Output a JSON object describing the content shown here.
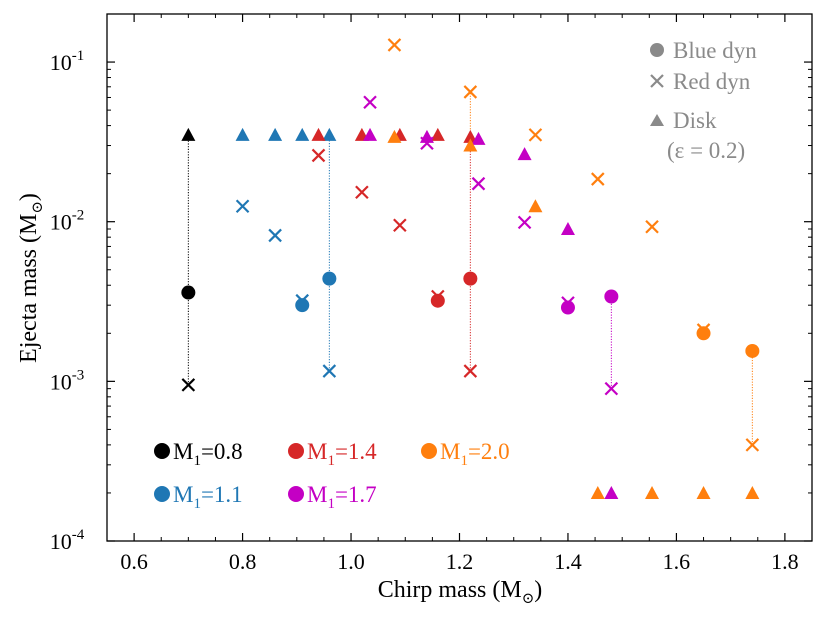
{
  "chart_data": {
    "type": "scatter",
    "title": "",
    "xlabel_main": "Chirp mass (M",
    "xlabel_sub": "⊙",
    "xlabel_end": ")",
    "ylabel_main": "Ejecta mass (M",
    "ylabel_sub": "⊙",
    "ylabel_end": ")",
    "xlim": [
      0.55,
      1.85
    ],
    "ylim": [
      0.0001,
      0.2
    ],
    "yscale": "log",
    "xticks": [
      {
        "value": 0.6,
        "label": "0.6"
      },
      {
        "value": 0.8,
        "label": "0.8"
      },
      {
        "value": 1.0,
        "label": "1.0"
      },
      {
        "value": 1.2,
        "label": "1.2"
      },
      {
        "value": 1.4,
        "label": "1.4"
      },
      {
        "value": 1.6,
        "label": "1.6"
      },
      {
        "value": 1.8,
        "label": "1.8"
      }
    ],
    "yticks": [
      {
        "value": 0.0001,
        "base": "10",
        "exp": "-4"
      },
      {
        "value": 0.001,
        "base": "10",
        "exp": "-3"
      },
      {
        "value": 0.01,
        "base": "10",
        "exp": "-2"
      },
      {
        "value": 0.1,
        "base": "10",
        "exp": "-1"
      }
    ],
    "marker_legend": [
      {
        "marker": "circle",
        "label": "Blue dyn"
      },
      {
        "marker": "cross",
        "label": "Red dyn"
      },
      {
        "marker": "triangle",
        "label": "Disk"
      },
      {
        "marker": "none",
        "label": "(ε = 0.2)"
      }
    ],
    "legend_marker_color": "#8a8a8a",
    "series": [
      {
        "name": "M1=0.8",
        "label_main": "M",
        "label_sub": "1",
        "label_end": "=0.8",
        "color": "#000000",
        "blue_dyn": [
          {
            "x": 0.7,
            "y": 0.0036
          }
        ],
        "red_dyn": [
          {
            "x": 0.7,
            "y": 0.00095
          }
        ],
        "disk": [
          {
            "x": 0.7,
            "y": 0.035
          }
        ],
        "connectors": [
          {
            "x": 0.7,
            "y0": 0.00095,
            "y1": 0.035
          }
        ]
      },
      {
        "name": "M1=1.1",
        "label_main": "M",
        "label_sub": "1",
        "label_end": "=1.1",
        "color": "#1f77b4",
        "blue_dyn": [
          {
            "x": 0.91,
            "y": 0.003
          },
          {
            "x": 0.96,
            "y": 0.0044
          }
        ],
        "red_dyn": [
          {
            "x": 0.8,
            "y": 0.0125
          },
          {
            "x": 0.86,
            "y": 0.0082
          },
          {
            "x": 0.91,
            "y": 0.0032
          },
          {
            "x": 0.96,
            "y": 0.00116
          }
        ],
        "disk": [
          {
            "x": 0.8,
            "y": 0.035
          },
          {
            "x": 0.86,
            "y": 0.035
          },
          {
            "x": 0.91,
            "y": 0.035
          },
          {
            "x": 0.96,
            "y": 0.035
          }
        ],
        "connectors": [
          {
            "x": 0.96,
            "y0": 0.00116,
            "y1": 0.035
          }
        ]
      },
      {
        "name": "M1=1.4",
        "label_main": "M",
        "label_sub": "1",
        "label_end": "=1.4",
        "color": "#d62728",
        "blue_dyn": [
          {
            "x": 1.16,
            "y": 0.0032
          },
          {
            "x": 1.22,
            "y": 0.0044
          }
        ],
        "red_dyn": [
          {
            "x": 0.94,
            "y": 0.026
          },
          {
            "x": 1.02,
            "y": 0.0153
          },
          {
            "x": 1.09,
            "y": 0.0095
          },
          {
            "x": 1.16,
            "y": 0.0034
          },
          {
            "x": 1.22,
            "y": 0.00116
          }
        ],
        "disk": [
          {
            "x": 0.94,
            "y": 0.035
          },
          {
            "x": 1.02,
            "y": 0.035
          },
          {
            "x": 1.09,
            "y": 0.035
          },
          {
            "x": 1.16,
            "y": 0.035
          },
          {
            "x": 1.22,
            "y": 0.034
          }
        ],
        "connectors": [
          {
            "x": 1.22,
            "y0": 0.00116,
            "y1": 0.034
          }
        ]
      },
      {
        "name": "M1=1.7",
        "label_main": "M",
        "label_sub": "1",
        "label_end": "=1.7",
        "color": "#c400c4",
        "blue_dyn": [
          {
            "x": 1.4,
            "y": 0.0029
          },
          {
            "x": 1.48,
            "y": 0.0034
          }
        ],
        "red_dyn": [
          {
            "x": 1.035,
            "y": 0.056
          },
          {
            "x": 1.14,
            "y": 0.031
          },
          {
            "x": 1.235,
            "y": 0.0173
          },
          {
            "x": 1.32,
            "y": 0.0099
          },
          {
            "x": 1.4,
            "y": 0.0031
          },
          {
            "x": 1.48,
            "y": 0.0009
          }
        ],
        "disk": [
          {
            "x": 1.035,
            "y": 0.035
          },
          {
            "x": 1.14,
            "y": 0.034
          },
          {
            "x": 1.235,
            "y": 0.033
          },
          {
            "x": 1.32,
            "y": 0.0265
          },
          {
            "x": 1.4,
            "y": 0.009
          },
          {
            "x": 1.48,
            "y": 0.0002
          }
        ],
        "connectors": [
          {
            "x": 1.48,
            "y0": 0.0009,
            "y1": 0.0034
          }
        ]
      },
      {
        "name": "M1=2.0",
        "label_main": "M",
        "label_sub": "1",
        "label_end": "=2.0",
        "color": "#ff7f0e",
        "blue_dyn": [
          {
            "x": 1.65,
            "y": 0.002
          },
          {
            "x": 1.74,
            "y": 0.00155
          }
        ],
        "red_dyn": [
          {
            "x": 1.08,
            "y": 0.128
          },
          {
            "x": 1.22,
            "y": 0.065
          },
          {
            "x": 1.34,
            "y": 0.035
          },
          {
            "x": 1.455,
            "y": 0.0185
          },
          {
            "x": 1.555,
            "y": 0.0093
          },
          {
            "x": 1.65,
            "y": 0.0021
          },
          {
            "x": 1.74,
            "y": 0.0004
          }
        ],
        "disk": [
          {
            "x": 1.08,
            "y": 0.034
          },
          {
            "x": 1.22,
            "y": 0.03
          },
          {
            "x": 1.34,
            "y": 0.0125
          },
          {
            "x": 1.455,
            "y": 0.0002
          },
          {
            "x": 1.555,
            "y": 0.0002
          },
          {
            "x": 1.65,
            "y": 0.0002
          },
          {
            "x": 1.74,
            "y": 0.0002
          }
        ],
        "connectors": [
          {
            "x": 1.22,
            "y0": 0.03,
            "y1": 0.065
          },
          {
            "x": 1.74,
            "y0": 0.0004,
            "y1": 0.00155
          }
        ]
      }
    ]
  }
}
